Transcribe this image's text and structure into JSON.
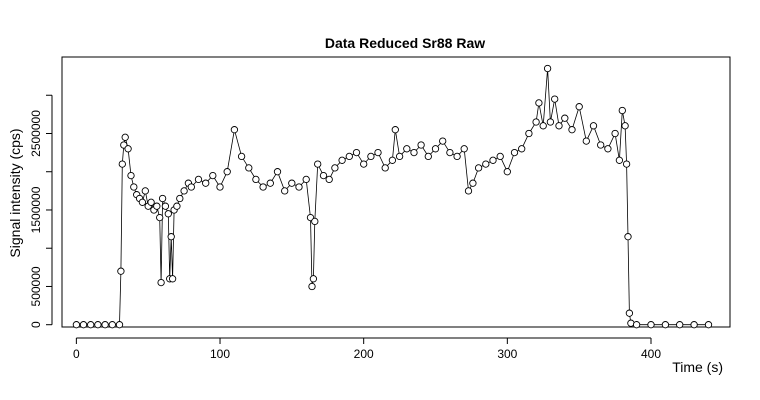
{
  "chart_data": {
    "type": "scatter",
    "title": "Data Reduced Sr88 Raw",
    "xlabel": "Time (s)",
    "ylabel": "Signal intensity (cps)",
    "xlim": [
      -10,
      455
    ],
    "ylim": [
      -30000,
      3500000
    ],
    "x_ticks": [
      0,
      100,
      200,
      300,
      400
    ],
    "y_ticks": [
      0,
      500000,
      1000000,
      1500000,
      2000000,
      2500000,
      3000000
    ],
    "y_tick_labels": [
      "0",
      "500000",
      "",
      "1500000",
      "",
      "2500000",
      ""
    ],
    "grid": false,
    "marker": "open-circle",
    "connected": true,
    "series": [
      {
        "x": [
          0,
          5,
          10,
          15,
          20,
          25,
          30,
          31,
          32,
          33,
          34,
          36,
          38,
          40,
          42,
          44,
          46,
          48,
          50,
          52,
          54,
          56,
          58,
          59,
          60,
          62,
          64,
          65,
          66,
          67,
          68,
          70,
          72,
          75,
          78,
          80,
          85,
          90,
          95,
          100,
          105,
          110,
          115,
          120,
          125,
          130,
          135,
          140,
          145,
          150,
          155,
          160,
          163,
          164,
          165,
          166,
          168,
          172,
          176,
          180,
          185,
          190,
          195,
          200,
          205,
          210,
          215,
          220,
          222,
          225,
          230,
          235,
          240,
          245,
          250,
          255,
          260,
          265,
          270,
          273,
          276,
          280,
          285,
          290,
          295,
          300,
          305,
          310,
          315,
          320,
          322,
          325,
          328,
          330,
          333,
          336,
          340,
          345,
          350,
          355,
          360,
          365,
          370,
          375,
          378,
          380,
          382,
          383,
          384,
          385,
          386,
          390,
          400,
          410,
          420,
          430,
          440
        ],
        "y": [
          0,
          0,
          0,
          0,
          0,
          0,
          0,
          700000,
          2100000,
          2350000,
          2450000,
          2300000,
          1950000,
          1800000,
          1700000,
          1650000,
          1600000,
          1750000,
          1550000,
          1600000,
          1500000,
          1550000,
          1400000,
          550000,
          1650000,
          1550000,
          1450000,
          600000,
          1150000,
          600000,
          1500000,
          1550000,
          1650000,
          1750000,
          1850000,
          1800000,
          1900000,
          1850000,
          1950000,
          1800000,
          2000000,
          2550000,
          2200000,
          2050000,
          1900000,
          1800000,
          1850000,
          2000000,
          1750000,
          1850000,
          1800000,
          1900000,
          1400000,
          500000,
          600000,
          1350000,
          2100000,
          1950000,
          1900000,
          2050000,
          2150000,
          2200000,
          2250000,
          2100000,
          2200000,
          2250000,
          2050000,
          2150000,
          2550000,
          2200000,
          2300000,
          2250000,
          2350000,
          2200000,
          2300000,
          2400000,
          2250000,
          2200000,
          2300000,
          1750000,
          1850000,
          2050000,
          2100000,
          2150000,
          2200000,
          2000000,
          2250000,
          2300000,
          2500000,
          2650000,
          2900000,
          2600000,
          3350000,
          2650000,
          2950000,
          2600000,
          2700000,
          2550000,
          2850000,
          2400000,
          2600000,
          2350000,
          2300000,
          2500000,
          2150000,
          2800000,
          2600000,
          2100000,
          1150000,
          150000,
          20000,
          0,
          0,
          0,
          0,
          0,
          0
        ]
      }
    ]
  }
}
